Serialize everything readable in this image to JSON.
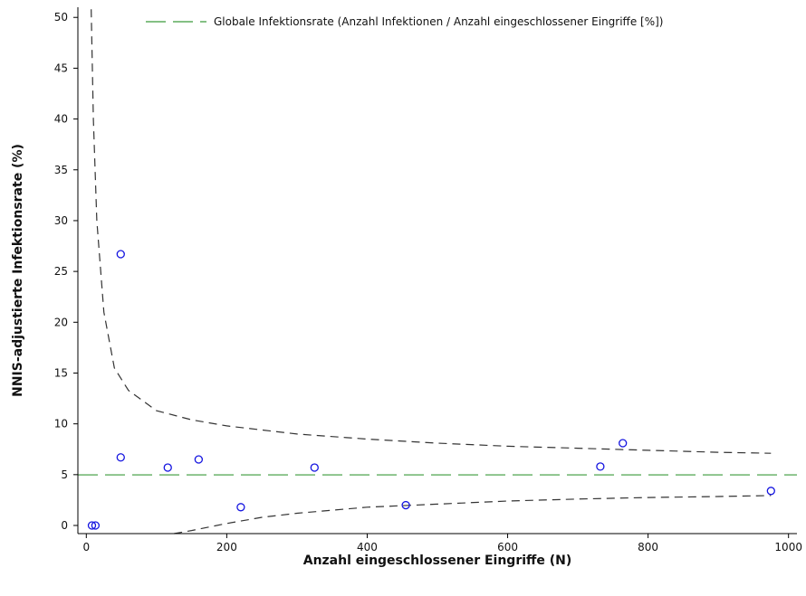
{
  "chart_data": {
    "type": "scatter",
    "xlabel": "Anzahl eingeschlossener Eingriffe (N)",
    "ylabel": "NNIS-adjustierte Infektionsrate (%)",
    "xlim": [
      -12,
      1012
    ],
    "ylim": [
      -0.8,
      51
    ],
    "x_ticks": [
      0,
      200,
      400,
      600,
      800,
      1000
    ],
    "y_ticks": [
      0,
      5,
      10,
      15,
      20,
      25,
      30,
      35,
      40,
      45,
      50
    ],
    "grid": false,
    "legend_position": "top-right",
    "reference_line": {
      "name": "Globale Infektionsrate (Anzahl Infektionen / Anzahl eingeschlossener Eingriffe [%])",
      "y": 4.98,
      "color": "#3a9a3a"
    },
    "series": [
      {
        "marker": "open-circle",
        "color": "#1515e0",
        "points": [
          {
            "x": 8,
            "y": 0.0
          },
          {
            "x": 13,
            "y": 0.0
          },
          {
            "x": 49,
            "y": 26.7
          },
          {
            "x": 49,
            "y": 6.7
          },
          {
            "x": 116,
            "y": 5.7
          },
          {
            "x": 160,
            "y": 6.5
          },
          {
            "x": 220,
            "y": 1.8
          },
          {
            "x": 325,
            "y": 5.7
          },
          {
            "x": 455,
            "y": 2.0
          },
          {
            "x": 732,
            "y": 5.8
          },
          {
            "x": 764,
            "y": 8.1
          },
          {
            "x": 975,
            "y": 3.4
          }
        ]
      }
    ],
    "control_limits": {
      "style": "dashed",
      "color": "#333333",
      "upper": [
        {
          "x": 7,
          "y": 50.8
        },
        {
          "x": 10,
          "y": 40.0
        },
        {
          "x": 15,
          "y": 30.0
        },
        {
          "x": 25,
          "y": 21.0
        },
        {
          "x": 40,
          "y": 15.5
        },
        {
          "x": 60,
          "y": 13.3
        },
        {
          "x": 100,
          "y": 11.3
        },
        {
          "x": 150,
          "y": 10.4
        },
        {
          "x": 200,
          "y": 9.8
        },
        {
          "x": 300,
          "y": 9.0
        },
        {
          "x": 400,
          "y": 8.5
        },
        {
          "x": 500,
          "y": 8.1
        },
        {
          "x": 600,
          "y": 7.8
        },
        {
          "x": 700,
          "y": 7.6
        },
        {
          "x": 800,
          "y": 7.4
        },
        {
          "x": 900,
          "y": 7.2
        },
        {
          "x": 975,
          "y": 7.1
        }
      ],
      "lower": [
        {
          "x": 125,
          "y": -0.8
        },
        {
          "x": 150,
          "y": -0.5
        },
        {
          "x": 200,
          "y": 0.2
        },
        {
          "x": 250,
          "y": 0.8
        },
        {
          "x": 300,
          "y": 1.2
        },
        {
          "x": 400,
          "y": 1.8
        },
        {
          "x": 500,
          "y": 2.1
        },
        {
          "x": 600,
          "y": 2.4
        },
        {
          "x": 700,
          "y": 2.6
        },
        {
          "x": 800,
          "y": 2.75
        },
        {
          "x": 900,
          "y": 2.85
        },
        {
          "x": 975,
          "y": 2.95
        }
      ]
    }
  }
}
